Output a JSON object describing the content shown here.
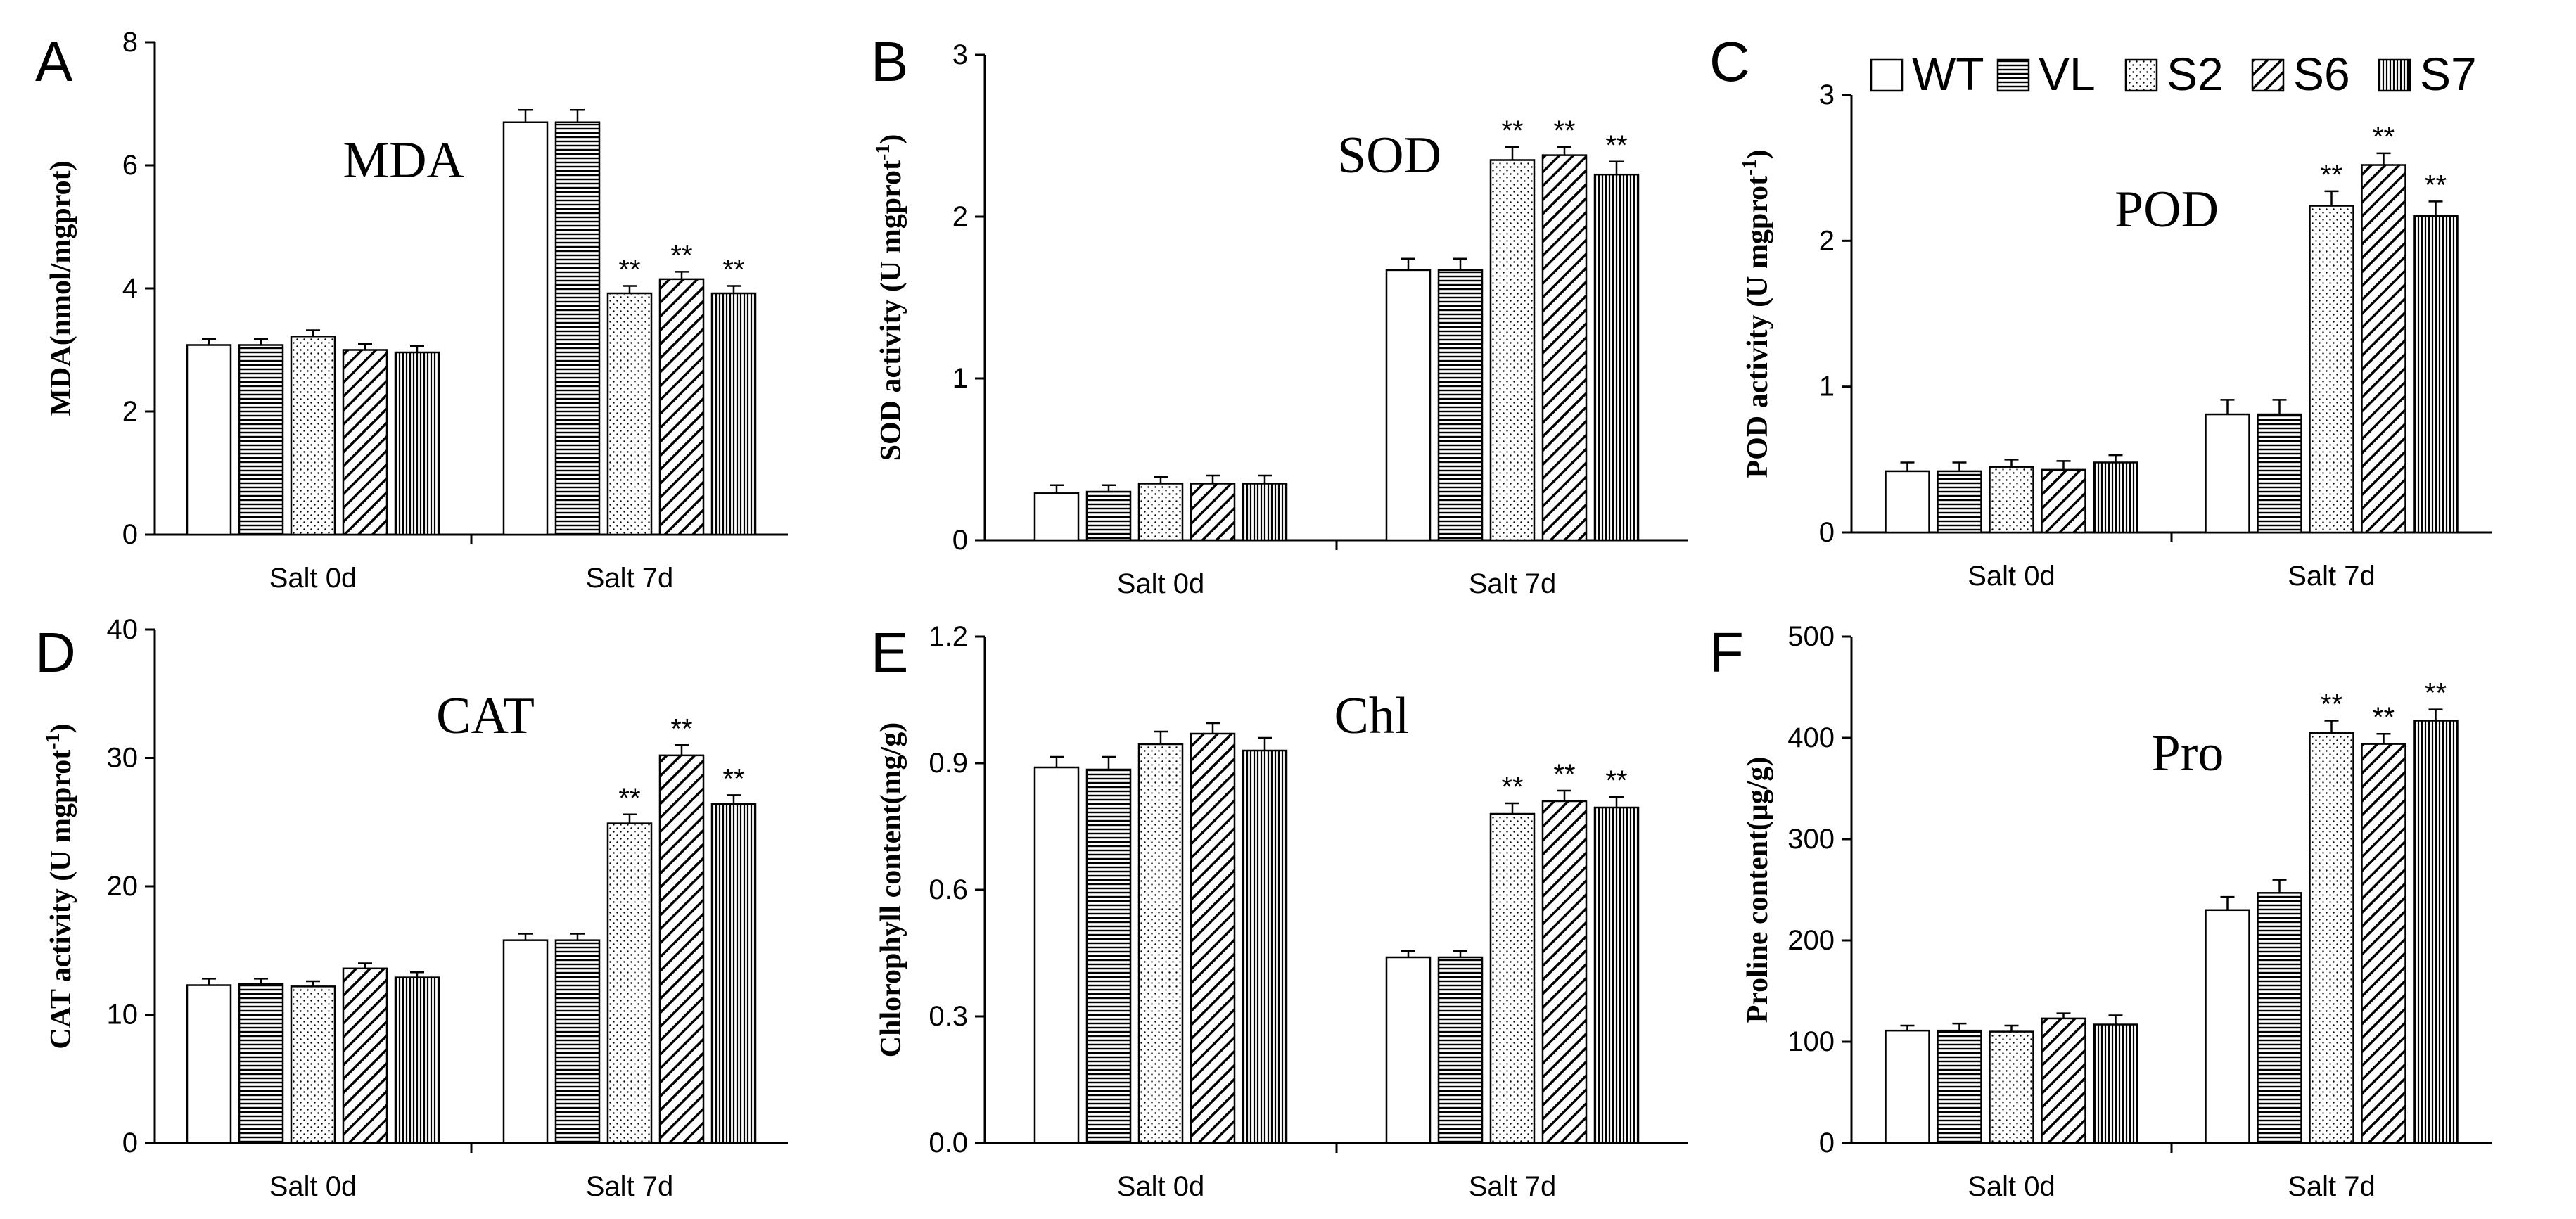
{
  "legend": {
    "entries": [
      {
        "name": "WT",
        "pattern": "plain"
      },
      {
        "name": "VL",
        "pattern": "horizontal"
      },
      {
        "name": "S2",
        "pattern": "dots"
      },
      {
        "name": "S6",
        "pattern": "diagonal"
      },
      {
        "name": "S7",
        "pattern": "vertical"
      }
    ]
  },
  "colors": {
    "bar_outline": "#000000",
    "background": "#ffffff"
  },
  "chart_data": [
    {
      "type": "bar",
      "panel_letter": "A",
      "title": "MDA",
      "ylabel": "MDA(nmol/mgprot)",
      "ylim": [
        0,
        8
      ],
      "yticks": [
        "0",
        "2",
        "4",
        "6",
        "8"
      ],
      "categories": [
        "Salt 0d",
        "Salt 7d"
      ],
      "series": [
        {
          "name": "WT",
          "values": [
            3.08,
            6.7
          ],
          "errors": [
            0.1,
            0.2
          ]
        },
        {
          "name": "VL",
          "values": [
            3.08,
            6.7
          ],
          "errors": [
            0.1,
            0.2
          ]
        },
        {
          "name": "S2",
          "values": [
            3.22,
            3.92
          ],
          "errors": [
            0.1,
            0.12
          ]
        },
        {
          "name": "S6",
          "values": [
            3.0,
            4.15
          ],
          "errors": [
            0.1,
            0.12
          ]
        },
        {
          "name": "S7",
          "values": [
            2.96,
            3.92
          ],
          "errors": [
            0.1,
            0.12
          ]
        }
      ],
      "significance": [
        [
          "",
          ""
        ],
        [
          "",
          ""
        ],
        [
          "",
          "**"
        ],
        [
          "",
          "**"
        ],
        [
          "",
          "**"
        ]
      ]
    },
    {
      "type": "bar",
      "panel_letter": "B",
      "title": "SOD",
      "ylabel": "SOD activity (U mgprot-1)",
      "ylabel_main": "SOD activity (U mgprot",
      "ylabel_sup": "-1",
      "ylabel_end": ")",
      "ylim": [
        0,
        3
      ],
      "yticks": [
        "0",
        "1",
        "2",
        "3"
      ],
      "categories": [
        "Salt 0d",
        "Salt 7d"
      ],
      "series": [
        {
          "name": "WT",
          "values": [
            0.29,
            1.67
          ],
          "errors": [
            0.05,
            0.07
          ]
        },
        {
          "name": "VL",
          "values": [
            0.3,
            1.67
          ],
          "errors": [
            0.04,
            0.07
          ]
        },
        {
          "name": "S2",
          "values": [
            0.35,
            2.35
          ],
          "errors": [
            0.04,
            0.08
          ]
        },
        {
          "name": "S6",
          "values": [
            0.35,
            2.38
          ],
          "errors": [
            0.05,
            0.05
          ]
        },
        {
          "name": "S7",
          "values": [
            0.35,
            2.26
          ],
          "errors": [
            0.05,
            0.08
          ]
        }
      ],
      "significance": [
        [
          "",
          ""
        ],
        [
          "",
          ""
        ],
        [
          "",
          "**"
        ],
        [
          "",
          "**"
        ],
        [
          "",
          "**"
        ]
      ]
    },
    {
      "type": "bar",
      "panel_letter": "C",
      "title": "POD",
      "ylabel": "POD activity (U mgprot-1)",
      "ylabel_main": "POD activity (U mgprot",
      "ylabel_sup": "-1",
      "ylabel_end": ")",
      "ylim": [
        0,
        3
      ],
      "yticks": [
        "0",
        "1",
        "2",
        "3"
      ],
      "categories": [
        "Salt 0d",
        "Salt 7d"
      ],
      "series": [
        {
          "name": "WT",
          "values": [
            0.42,
            0.81
          ],
          "errors": [
            0.06,
            0.1
          ]
        },
        {
          "name": "VL",
          "values": [
            0.42,
            0.81
          ],
          "errors": [
            0.06,
            0.1
          ]
        },
        {
          "name": "S2",
          "values": [
            0.45,
            2.24
          ],
          "errors": [
            0.05,
            0.1
          ]
        },
        {
          "name": "S6",
          "values": [
            0.43,
            2.52
          ],
          "errors": [
            0.06,
            0.08
          ]
        },
        {
          "name": "S7",
          "values": [
            0.48,
            2.17
          ],
          "errors": [
            0.05,
            0.1
          ]
        }
      ],
      "significance": [
        [
          "",
          ""
        ],
        [
          "",
          ""
        ],
        [
          "",
          "**"
        ],
        [
          "",
          "**"
        ],
        [
          "",
          "**"
        ]
      ]
    },
    {
      "type": "bar",
      "panel_letter": "D",
      "title": "CAT",
      "ylabel": "CAT activity (U mgprot-1)",
      "ylabel_main": "CAT activity (U mgprot",
      "ylabel_sup": "-1",
      "ylabel_end": ")",
      "ylim": [
        0,
        40
      ],
      "yticks": [
        "0",
        "10",
        "20",
        "30",
        "40"
      ],
      "categories": [
        "Salt 0d",
        "Salt 7d"
      ],
      "series": [
        {
          "name": "WT",
          "values": [
            12.3,
            15.8
          ],
          "errors": [
            0.5,
            0.5
          ]
        },
        {
          "name": "VL",
          "values": [
            12.4,
            15.8
          ],
          "errors": [
            0.4,
            0.5
          ]
        },
        {
          "name": "S2",
          "values": [
            12.2,
            24.9
          ],
          "errors": [
            0.4,
            0.7
          ]
        },
        {
          "name": "S6",
          "values": [
            13.6,
            30.2
          ],
          "errors": [
            0.4,
            0.8
          ]
        },
        {
          "name": "S7",
          "values": [
            12.9,
            26.4
          ],
          "errors": [
            0.4,
            0.7
          ]
        }
      ],
      "significance": [
        [
          "",
          ""
        ],
        [
          "",
          ""
        ],
        [
          "",
          "**"
        ],
        [
          "",
          "**"
        ],
        [
          "",
          "**"
        ]
      ]
    },
    {
      "type": "bar",
      "panel_letter": "E",
      "title": "Chl",
      "ylabel": "Chlorophyll content(mg/g)",
      "ylim": [
        0,
        1.2
      ],
      "yticks": [
        "0.0",
        "0.3",
        "0.6",
        "0.9",
        "1.2"
      ],
      "categories": [
        "Salt 0d",
        "Salt 7d"
      ],
      "series": [
        {
          "name": "WT",
          "values": [
            0.89,
            0.44
          ],
          "errors": [
            0.025,
            0.015
          ]
        },
        {
          "name": "VL",
          "values": [
            0.885,
            0.44
          ],
          "errors": [
            0.03,
            0.015
          ]
        },
        {
          "name": "S2",
          "values": [
            0.945,
            0.78
          ],
          "errors": [
            0.03,
            0.025
          ]
        },
        {
          "name": "S6",
          "values": [
            0.97,
            0.81
          ],
          "errors": [
            0.025,
            0.025
          ]
        },
        {
          "name": "S7",
          "values": [
            0.93,
            0.795
          ],
          "errors": [
            0.03,
            0.025
          ]
        }
      ],
      "significance": [
        [
          "",
          ""
        ],
        [
          "",
          ""
        ],
        [
          "",
          "**"
        ],
        [
          "",
          "**"
        ],
        [
          "",
          "**"
        ]
      ]
    },
    {
      "type": "bar",
      "panel_letter": "F",
      "title": "Pro",
      "ylabel": "Proline content(μg/g)",
      "ylim": [
        0,
        500
      ],
      "yticks": [
        "0",
        "100",
        "200",
        "300",
        "400",
        "500"
      ],
      "categories": [
        "Salt 0d",
        "Salt 7d"
      ],
      "series": [
        {
          "name": "WT",
          "values": [
            111,
            230
          ],
          "errors": [
            5,
            13
          ]
        },
        {
          "name": "VL",
          "values": [
            111,
            247
          ],
          "errors": [
            7,
            13
          ]
        },
        {
          "name": "S2",
          "values": [
            110,
            405
          ],
          "errors": [
            6,
            12
          ]
        },
        {
          "name": "S6",
          "values": [
            123,
            394
          ],
          "errors": [
            5,
            10
          ]
        },
        {
          "name": "S7",
          "values": [
            117,
            417
          ],
          "errors": [
            9,
            11
          ]
        }
      ],
      "significance": [
        [
          "",
          ""
        ],
        [
          "",
          ""
        ],
        [
          "",
          "**"
        ],
        [
          "",
          "**"
        ],
        [
          "",
          "**"
        ]
      ]
    }
  ]
}
